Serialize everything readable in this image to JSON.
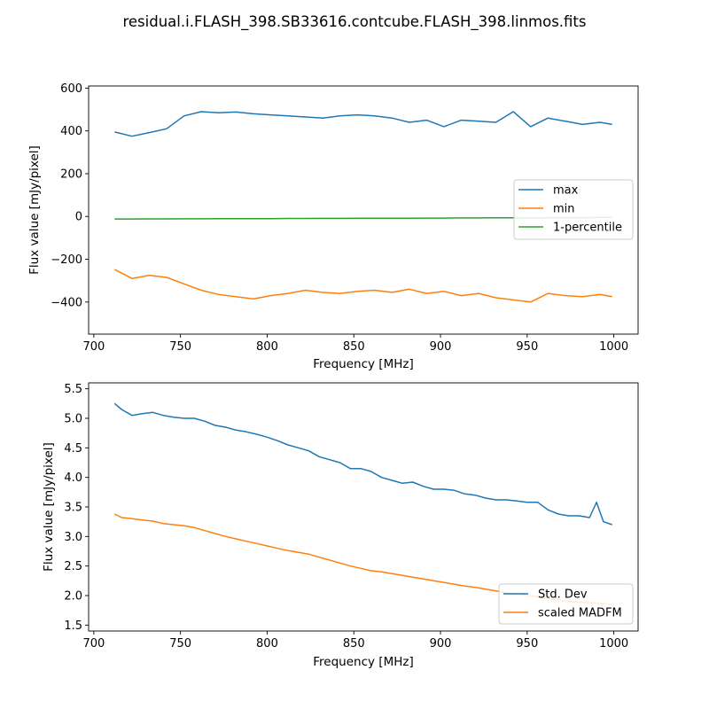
{
  "figure": {
    "title": "residual.i.FLASH_398.SB33616.contcube.FLASH_398.linmos.fits"
  },
  "chart_data": [
    {
      "type": "line",
      "xlabel": "Frequency [MHz]",
      "ylabel": "Flux value [mJy/pixel]",
      "xlim": [
        697,
        1014
      ],
      "ylim": [
        -550,
        610
      ],
      "xticks": [
        700,
        750,
        800,
        850,
        900,
        950,
        1000
      ],
      "yticks": [
        -400,
        -200,
        0,
        200,
        400,
        600
      ],
      "ytick_labels": [
        "−400",
        "−200",
        "0",
        "200",
        "400",
        "600"
      ],
      "grid": false,
      "legend_position": "center-right",
      "x": [
        712,
        722,
        732,
        742,
        752,
        762,
        772,
        782,
        792,
        802,
        812,
        822,
        832,
        842,
        852,
        862,
        872,
        882,
        892,
        902,
        912,
        922,
        932,
        942,
        952,
        962,
        972,
        982,
        992,
        999
      ],
      "series": [
        {
          "name": "max",
          "color": "#1f77b4",
          "values": [
            395,
            375,
            392,
            410,
            470,
            490,
            485,
            488,
            480,
            475,
            470,
            465,
            460,
            470,
            475,
            470,
            460,
            440,
            450,
            420,
            450,
            445,
            440,
            490,
            420,
            460,
            445,
            430,
            440,
            430
          ]
        },
        {
          "name": "min",
          "color": "#ff7f0e",
          "values": [
            -248,
            -290,
            -275,
            -285,
            -315,
            -345,
            -365,
            -375,
            -385,
            -370,
            -360,
            -345,
            -355,
            -360,
            -350,
            -345,
            -355,
            -340,
            -360,
            -350,
            -370,
            -360,
            -380,
            -390,
            -400,
            -360,
            -370,
            -375,
            -365,
            -375
          ]
        },
        {
          "name": "1-percentile",
          "color": "#2ca02c",
          "values": [
            -12,
            -12,
            -11.5,
            -11.5,
            -11,
            -11,
            -10.5,
            -10.5,
            -10,
            -10,
            -9.5,
            -9.5,
            -9,
            -9,
            -8.5,
            -8.5,
            -8,
            -8,
            -7.5,
            -7.5,
            -7,
            -7,
            -6.5,
            -6.5,
            -6,
            -6,
            -5.5,
            -5.5,
            -5,
            -5
          ]
        }
      ]
    },
    {
      "type": "line",
      "xlabel": "Frequency [MHz]",
      "ylabel": "Flux value [mJy/pixel]",
      "xlim": [
        697,
        1014
      ],
      "ylim": [
        1.4,
        5.6
      ],
      "xticks": [
        700,
        750,
        800,
        850,
        900,
        950,
        1000
      ],
      "yticks": [
        1.5,
        2.0,
        2.5,
        3.0,
        3.5,
        4.0,
        4.5,
        5.0,
        5.5
      ],
      "ytick_labels": [
        "1.5",
        "2.0",
        "2.5",
        "3.0",
        "3.5",
        "4.0",
        "4.5",
        "5.0",
        "5.5"
      ],
      "grid": false,
      "legend_position": "lower-right",
      "x": [
        712,
        716,
        722,
        728,
        734,
        740,
        746,
        752,
        758,
        764,
        770,
        776,
        782,
        788,
        794,
        800,
        806,
        812,
        818,
        824,
        830,
        836,
        842,
        848,
        854,
        860,
        866,
        872,
        878,
        884,
        890,
        896,
        902,
        908,
        914,
        920,
        926,
        932,
        938,
        944,
        950,
        956,
        962,
        968,
        974,
        980,
        986,
        990,
        994,
        999
      ],
      "series": [
        {
          "name": "Std. Dev",
          "color": "#1f77b4",
          "values": [
            5.25,
            5.15,
            5.05,
            5.08,
            5.1,
            5.05,
            5.02,
            5.0,
            5.0,
            4.95,
            4.88,
            4.85,
            4.8,
            4.77,
            4.73,
            4.68,
            4.62,
            4.55,
            4.5,
            4.45,
            4.35,
            4.3,
            4.25,
            4.15,
            4.15,
            4.1,
            4.0,
            3.95,
            3.9,
            3.92,
            3.85,
            3.8,
            3.8,
            3.78,
            3.72,
            3.7,
            3.65,
            3.62,
            3.62,
            3.6,
            3.58,
            3.58,
            3.45,
            3.38,
            3.35,
            3.35,
            3.32,
            3.58,
            3.25,
            3.2
          ]
        },
        {
          "name": "scaled MADFM",
          "color": "#ff7f0e",
          "values": [
            3.38,
            3.32,
            3.3,
            3.28,
            3.26,
            3.22,
            3.2,
            3.18,
            3.15,
            3.1,
            3.05,
            3.0,
            2.96,
            2.92,
            2.88,
            2.84,
            2.8,
            2.76,
            2.73,
            2.7,
            2.65,
            2.6,
            2.55,
            2.5,
            2.46,
            2.42,
            2.4,
            2.37,
            2.34,
            2.31,
            2.28,
            2.25,
            2.22,
            2.19,
            2.16,
            2.14,
            2.11,
            2.08,
            2.05,
            2.03,
            2.0,
            1.98,
            1.95,
            1.93,
            1.9,
            1.89,
            1.88,
            1.87,
            1.86,
            1.85
          ]
        }
      ]
    }
  ]
}
